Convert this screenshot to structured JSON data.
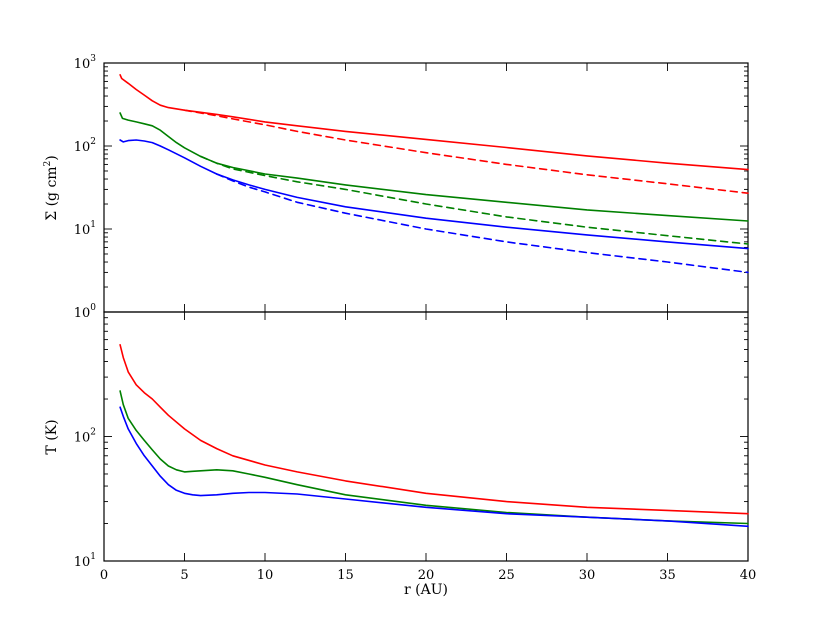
{
  "chart_data": [
    {
      "type": "line",
      "panel": "top",
      "ylabel_prefix": "Σ (g cm",
      "ylabel_sup": "2",
      "ylabel_suffix": ")",
      "yscale": "log",
      "ylim": [
        1,
        1000
      ],
      "xlim": [
        0,
        40
      ],
      "yticks": [
        {
          "value": 1,
          "base": "10",
          "exp": "0"
        },
        {
          "value": 10,
          "base": "10",
          "exp": "1"
        },
        {
          "value": 100,
          "base": "10",
          "exp": "2"
        },
        {
          "value": 1000,
          "base": "10",
          "exp": "3"
        }
      ],
      "series": [
        {
          "color": "#ff0000",
          "dash": false,
          "x": [
            1.0,
            1.1,
            1.5,
            2.0,
            2.5,
            3.0,
            3.5,
            4.0,
            5.0,
            6.0,
            7.0,
            8.0,
            10.0,
            12.0,
            15.0,
            20.0,
            25.0,
            30.0,
            35.0,
            40.0
          ],
          "y": [
            720,
            650,
            570,
            480,
            410,
            350,
            310,
            290,
            270,
            255,
            240,
            225,
            195,
            175,
            150,
            120,
            96,
            76,
            62,
            52
          ]
        },
        {
          "color": "#ff0000",
          "dash": true,
          "x": [
            5.0,
            6.0,
            7.0,
            8.0,
            10.0,
            12.0,
            15.0,
            20.0,
            25.0,
            30.0,
            35.0,
            40.0
          ],
          "y": [
            270,
            250,
            232,
            212,
            180,
            150,
            118,
            83,
            60,
            45,
            35,
            27
          ]
        },
        {
          "color": "#008000",
          "dash": false,
          "x": [
            1.0,
            1.15,
            1.5,
            2.0,
            2.5,
            3.0,
            3.5,
            4.0,
            4.5,
            5.0,
            6.0,
            7.0,
            8.0,
            10.0,
            12.0,
            15.0,
            20.0,
            25.0,
            30.0,
            35.0,
            40.0
          ],
          "y": [
            250,
            215,
            205,
            195,
            185,
            175,
            155,
            130,
            110,
            95,
            75,
            62,
            55,
            46,
            41,
            34,
            26,
            21,
            17,
            14.5,
            12.5
          ]
        },
        {
          "color": "#008000",
          "dash": true,
          "x": [
            6.0,
            7.0,
            8.0,
            10.0,
            12.0,
            15.0,
            20.0,
            25.0,
            30.0,
            35.0,
            40.0
          ],
          "y": [
            75,
            62,
            53,
            44,
            37,
            30,
            20,
            14,
            10.5,
            8.3,
            6.6
          ]
        },
        {
          "color": "#0000ff",
          "dash": false,
          "x": [
            1.0,
            1.2,
            1.5,
            2.0,
            2.5,
            3.0,
            3.5,
            4.0,
            5.0,
            6.0,
            7.0,
            8.0,
            9.0,
            10.0,
            12.0,
            15.0,
            20.0,
            25.0,
            30.0,
            35.0,
            40.0
          ],
          "y": [
            118,
            112,
            116,
            118,
            115,
            110,
            100,
            90,
            72,
            57,
            46,
            39,
            34,
            30,
            24,
            18.5,
            13.5,
            10.5,
            8.5,
            7.0,
            5.8
          ]
        },
        {
          "color": "#0000ff",
          "dash": true,
          "x": [
            7.0,
            8.0,
            9.0,
            10.0,
            12.0,
            15.0,
            20.0,
            25.0,
            30.0,
            35.0,
            40.0
          ],
          "y": [
            46,
            38,
            32,
            28,
            21,
            15.5,
            10,
            7.0,
            5.2,
            4.0,
            3.0
          ]
        }
      ]
    },
    {
      "type": "line",
      "panel": "bottom",
      "ylabel": "T (K)",
      "xlabel": "r (AU)",
      "yscale": "log",
      "ylim": [
        10,
        1000
      ],
      "xlim": [
        0,
        40
      ],
      "yticks": [
        {
          "value": 10,
          "base": "10",
          "exp": "1"
        },
        {
          "value": 100,
          "base": "10",
          "exp": "2"
        }
      ],
      "xticks": [
        0,
        5,
        10,
        15,
        20,
        25,
        30,
        35,
        40
      ],
      "series": [
        {
          "color": "#ff0000",
          "dash": false,
          "x": [
            1.0,
            1.2,
            1.5,
            2.0,
            2.5,
            3.0,
            3.5,
            4.0,
            5.0,
            6.0,
            7.0,
            8.0,
            10.0,
            12.0,
            15.0,
            20.0,
            25.0,
            30.0,
            35.0,
            40.0
          ],
          "y": [
            545,
            430,
            330,
            260,
            225,
            200,
            172,
            148,
            115,
            93,
            80,
            70,
            59,
            52,
            44,
            35,
            30,
            27,
            25.5,
            24
          ]
        },
        {
          "color": "#008000",
          "dash": false,
          "x": [
            1.0,
            1.2,
            1.5,
            2.0,
            2.5,
            3.0,
            3.5,
            4.0,
            4.5,
            5.0,
            5.5,
            6.0,
            7.0,
            8.0,
            9.0,
            10.0,
            12.0,
            15.0,
            20.0,
            25.0,
            30.0,
            35.0,
            40.0
          ],
          "y": [
            232,
            180,
            140,
            112,
            93,
            78,
            66,
            58,
            54,
            52,
            52.5,
            53,
            54,
            53,
            50,
            47,
            41,
            34,
            28,
            24.5,
            22.5,
            21,
            20
          ]
        },
        {
          "color": "#0000ff",
          "dash": false,
          "x": [
            1.0,
            1.2,
            1.5,
            2.0,
            2.5,
            3.0,
            3.5,
            4.0,
            4.5,
            5.0,
            5.5,
            6.0,
            7.0,
            8.0,
            9.0,
            10.0,
            12.0,
            15.0,
            20.0,
            25.0,
            30.0,
            35.0,
            40.0
          ],
          "y": [
            172,
            145,
            115,
            88,
            70,
            58,
            48,
            41,
            37,
            35,
            34,
            33.5,
            34,
            35,
            35.5,
            35.5,
            34.5,
            31.5,
            27,
            24,
            22.5,
            21,
            19
          ]
        }
      ]
    }
  ]
}
